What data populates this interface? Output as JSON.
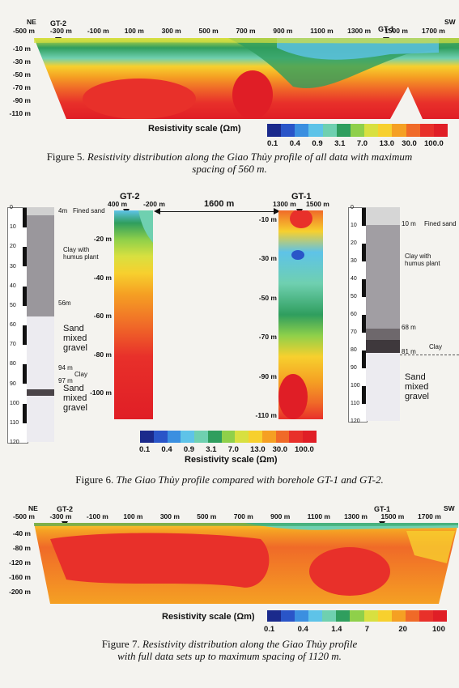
{
  "fig5": {
    "direction_left": "NE",
    "direction_right": "SW",
    "x_ticks": [
      "-500 m",
      "-300 m",
      "-100 m",
      "100 m",
      "300 m",
      "500 m",
      "700 m",
      "900 m",
      "1100 m",
      "1300 m",
      "1500 m",
      "1700 m"
    ],
    "y_ticks": [
      "-10 m",
      "-30 m",
      "-50 m",
      "-70 m",
      "-90 m",
      "-110 m"
    ],
    "borehole_left": "GT-2",
    "borehole_right": "GT-1",
    "scale_title": "Resistivity scale (Ωm)",
    "scale_labels": [
      "0.1",
      "0.4",
      "0.9",
      "3.1",
      "7.0",
      "13.0",
      "30.0",
      "100.0"
    ],
    "caption_label": "Figure 5.",
    "caption_text": "Resistivity distribution along the Giao Thủy profile of all data with maximum spacing of 560 m."
  },
  "fig6": {
    "left_borehole": {
      "depth_ticks": [
        "0",
        "10",
        "20",
        "30",
        "40",
        "50",
        "60",
        "70",
        "80",
        "90",
        "100",
        "110",
        "120"
      ],
      "layers": [
        {
          "depth": "4m",
          "label": "Fined sand"
        },
        {
          "depth": "",
          "label": "Clay with humus plant"
        },
        {
          "depth": "56m",
          "label": ""
        },
        {
          "depth": "",
          "label": "Sand mixed gravel"
        },
        {
          "depth": "94 m",
          "label": "Clay"
        },
        {
          "depth": "97 m",
          "label": "Sand mixed gravel"
        }
      ]
    },
    "right_borehole": {
      "depth_ticks": [
        "0",
        "10",
        "20",
        "30",
        "40",
        "50",
        "60",
        "70",
        "80",
        "90",
        "100",
        "110",
        "120"
      ],
      "layers": [
        {
          "depth": "10 m",
          "label": "Fined sand"
        },
        {
          "depth": "",
          "label": "Clay with humus plant"
        },
        {
          "depth": "68 m",
          "label": ""
        },
        {
          "depth": "",
          "label": "Clay"
        },
        {
          "depth": "81 m",
          "label": ""
        },
        {
          "depth": "",
          "label": "Sand mixed gravel"
        }
      ]
    },
    "left_section": {
      "name": "GT-2",
      "x_left": "400 m",
      "x_right": "-200 m",
      "y_ticks": [
        "-20 m",
        "-40 m",
        "-60 m",
        "-80 m",
        "-100 m"
      ]
    },
    "distance": "1600 m",
    "right_section": {
      "name": "GT-1",
      "x_left": "1300 m",
      "x_right": "1500 m",
      "y_ticks": [
        "-10 m",
        "-30 m",
        "-50 m",
        "-70 m",
        "-90 m",
        "-110 m"
      ]
    },
    "scale_title": "Resistivity scale (Ωm)",
    "scale_labels": [
      "0.1",
      "0.4",
      "0.9",
      "3.1",
      "7.0",
      "13.0",
      "30.0",
      "100.0"
    ],
    "caption_label": "Figure 6.",
    "caption_text": "The Giao Thủy profile compared with borehole GT-1 and GT-2."
  },
  "fig7": {
    "direction_left": "NE",
    "direction_right": "SW",
    "x_ticks": [
      "-500 m",
      "-300 m",
      "-100 m",
      "100 m",
      "300 m",
      "500 m",
      "700 m",
      "900 m",
      "1100 m",
      "1300 m",
      "1500 m",
      "1700 m"
    ],
    "y_ticks": [
      "-40 m",
      "-80 m",
      "-120 m",
      "-160 m",
      "-200 m"
    ],
    "borehole_left": "GT-2",
    "borehole_right": "GT-1",
    "scale_title": "Resistivity scale (Ωm)",
    "scale_labels": [
      "0.1",
      "0.4",
      "1.4",
      "7",
      "20",
      "100"
    ],
    "caption_label": "Figure 7.",
    "caption_text_line1": "Resistivity distribution along the Giao Thủy profile",
    "caption_text_line2": "with full data sets up to maximum spacing of 1120 m."
  },
  "colors": {
    "scale": [
      "#1b2a8c",
      "#2a55c8",
      "#3b8fe0",
      "#5ec3e8",
      "#6fd0b0",
      "#2f9e5e",
      "#8fd04a",
      "#d8e040",
      "#f7d02e",
      "#f5a023",
      "#f06a28",
      "#e8302a",
      "#e01e26"
    ]
  }
}
